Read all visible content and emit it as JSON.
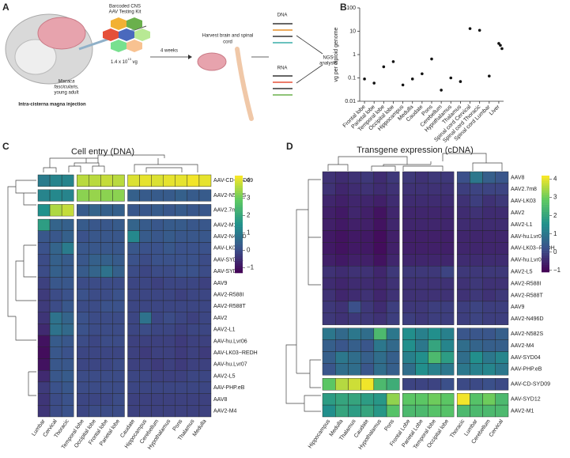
{
  "panel_labels": [
    "A",
    "B",
    "C",
    "D"
  ],
  "diagram": {
    "kit_line1": "Barcoded CNS",
    "kit_line2": "AAV Testing Kit",
    "dose": "1.4 x 10",
    "dose_exp": "13",
    "dose_unit": " vg",
    "species_line1": "Macaca",
    "species_line2": "fascicularis,",
    "species_line3": "young adult",
    "injection": "Intra-cisterna magna injection",
    "wait": "4 weeks",
    "harvest_line1": "Harvest brain and spinal",
    "harvest_line2": "cord",
    "dna": "DNA",
    "rna": "RNA",
    "ngs_line1": "NGS",
    "ngs_line2": "analysis"
  },
  "chart_data": [
    {
      "type": "scatter",
      "ylabel": "vg per diploid genome",
      "log": true,
      "color": "#111111",
      "categories": [
        "Frontal lobe",
        "Parietal lobe",
        "Temporal lobe",
        "Occipital lobe",
        "Hippocampus",
        "Medulla",
        "Caudate",
        "Pons",
        "Cerebellum",
        "Hypothalamus",
        "Thalamus",
        "Spinal cord Cervical",
        "Spinal cord Thoracic",
        "Spinal cord Lumbar",
        "Liver"
      ],
      "x": [
        "Frontal lobe",
        "Parietal lobe",
        "Temporal lobe",
        "Occipital lobe",
        "Hippocampus",
        "Medulla",
        "Caudate",
        "Pons",
        "Cerebellum",
        "Hypothalamus",
        "Thalamus",
        "Spinal cord Cervical",
        "Spinal cord Thoracic",
        "Spinal cord Lumbar",
        "Liver",
        "Liver",
        "Liver"
      ],
      "values": [
        0.09,
        0.06,
        0.3,
        0.5,
        0.05,
        0.09,
        0.15,
        0.65,
        0.03,
        0.1,
        0.07,
        13,
        11,
        0.12,
        3,
        2.5,
        1.8
      ],
      "ylim": [
        0.01,
        100
      ],
      "yticks": [
        0.01,
        0.1,
        1,
        10,
        100
      ]
    },
    {
      "type": "heatmap",
      "title": "Cell entry (DNA)",
      "columns": [
        "Lumbar",
        "Cervical",
        "Thoracic",
        "Temporal lobe",
        "Occipital lobe",
        "Frontal lobe",
        "Parietal lobe",
        "Caudate",
        "Hippocampus",
        "Cerebellum",
        "Hypothalamus",
        "Pons",
        "Thalamus",
        "Medulla"
      ],
      "rows": [
        "AAV-CD-SYD09",
        "AAV2-N582S",
        "AAV2.7m8",
        "AAV2-M1",
        "AAV2-N496D",
        "AAV-LK03",
        "AAV-SYD04",
        "AAV-SYD12",
        "AAV9",
        "AAV2-R588I",
        "AAV2-R588T",
        "AAV2",
        "AAV2-L1",
        "AAV-hu.Lvr06",
        "AAV-LK03−REDH",
        "AAV-hu.Lvr07",
        "AAV2-L5",
        "AAV-PHP.eB",
        "AAV8",
        "AAV2-M4"
      ],
      "column_splits": [
        3,
        7
      ],
      "row_splits": [
        1,
        2,
        3
      ],
      "values": [
        [
          1.0,
          1.2,
          1.2,
          3.7,
          3.7,
          3.8,
          3.7,
          4.0,
          4.1,
          4.0,
          4.1,
          4.1,
          4.2,
          4.1
        ],
        [
          1.2,
          1.3,
          1.2,
          3.3,
          3.4,
          3.3,
          3.3,
          0.4,
          0.3,
          0.3,
          0.3,
          0.4,
          0.3,
          0.3
        ],
        [
          1.5,
          3.6,
          3.8,
          0.3,
          0.5,
          0.4,
          0.4,
          0.2,
          0.2,
          0.3,
          0.2,
          0.3,
          0.2,
          0.2
        ],
        [
          1.8,
          0.5,
          0.4,
          0.3,
          0.2,
          0.2,
          0.3,
          0.5,
          0.3,
          0.2,
          0.3,
          0.3,
          0.2,
          0.2
        ],
        [
          0.2,
          0.2,
          0.4,
          0.1,
          0.2,
          0.2,
          0.2,
          1.3,
          0.3,
          0.2,
          0.3,
          0.2,
          0.2,
          0.2
        ],
        [
          0.1,
          0.5,
          1.0,
          0.2,
          0.2,
          0.2,
          0.2,
          0.2,
          0.1,
          0.1,
          0.2,
          0.1,
          0.1,
          0.1
        ],
        [
          0.0,
          0.4,
          0.3,
          0.2,
          0.4,
          0.4,
          0.3,
          0.1,
          0.0,
          0.1,
          0.1,
          0.1,
          0.1,
          0.0
        ],
        [
          0.0,
          0.4,
          0.3,
          0.3,
          0.5,
          0.8,
          0.4,
          0.0,
          -0.1,
          0.0,
          0.0,
          0.1,
          0.1,
          0.0
        ],
        [
          -0.2,
          0.2,
          0.2,
          0.0,
          0.0,
          0.0,
          0.0,
          -0.1,
          -0.1,
          -0.2,
          -0.1,
          -0.1,
          -0.1,
          -0.2
        ],
        [
          -0.3,
          0.0,
          0.1,
          0.1,
          0.0,
          0.0,
          0.1,
          -0.1,
          -0.1,
          -0.1,
          -0.1,
          -0.2,
          -0.1,
          -0.1
        ],
        [
          -0.3,
          0.0,
          0.2,
          0.0,
          0.0,
          0.1,
          0.1,
          -0.1,
          -0.1,
          -0.1,
          -0.1,
          -0.1,
          -0.1,
          -0.1
        ],
        [
          -0.4,
          0.8,
          0.5,
          0.1,
          0.0,
          0.0,
          0.0,
          -0.1,
          0.8,
          -0.1,
          0.0,
          -0.1,
          -0.2,
          -0.1
        ],
        [
          -0.6,
          0.8,
          0.6,
          0.1,
          0.0,
          0.0,
          0.0,
          -0.1,
          0.0,
          -0.1,
          -0.1,
          -0.2,
          -0.1,
          -0.1
        ],
        [
          -1.0,
          0.3,
          0.2,
          0.0,
          -0.1,
          0.0,
          0.0,
          -0.2,
          -0.2,
          -0.2,
          -0.2,
          -0.3,
          -0.2,
          -0.2
        ],
        [
          -1.1,
          0.2,
          0.1,
          -0.1,
          -0.1,
          -0.1,
          -0.1,
          -0.2,
          -0.3,
          -0.2,
          -0.2,
          -0.3,
          -0.2,
          -0.3
        ],
        [
          -1.0,
          0.2,
          0.2,
          -0.1,
          -0.1,
          -0.1,
          0.0,
          -0.2,
          -0.2,
          -0.3,
          -0.2,
          -0.3,
          -0.2,
          -0.2
        ],
        [
          -0.6,
          0.2,
          0.3,
          0.0,
          0.0,
          0.0,
          0.0,
          -0.1,
          -0.1,
          -0.2,
          -0.2,
          -0.2,
          -0.1,
          -0.1
        ],
        [
          -0.3,
          0.1,
          0.2,
          0.0,
          0.0,
          0.0,
          0.0,
          -0.1,
          -0.1,
          -0.1,
          -0.1,
          -0.1,
          -0.1,
          -0.1
        ],
        [
          -0.4,
          0.0,
          0.1,
          -0.1,
          -0.1,
          -0.1,
          0.0,
          -0.2,
          -0.2,
          -0.2,
          -0.2,
          -0.2,
          -0.2,
          -0.2
        ],
        [
          -0.4,
          0.0,
          0.1,
          -0.1,
          0.0,
          0.0,
          0.0,
          -0.2,
          -0.2,
          -0.2,
          -0.2,
          -0.2,
          -0.2,
          -0.2
        ]
      ],
      "colorbar_lim": [
        -1.3,
        4.3
      ],
      "colorbar_ticks": [
        {
          "value": -1,
          "label": "−1"
        },
        0,
        1,
        2,
        3,
        4
      ]
    },
    {
      "type": "heatmap",
      "title": "Transgene expression (cDNA)",
      "columns": [
        "Hippocampus",
        "Medulla",
        "Thalamus",
        "Caudate",
        "Hypothalamus",
        "Pons",
        "Frontal Lobe",
        "Parietal Lobe",
        "Temporal lobe",
        "Occipital lobe",
        "Thoracic",
        "Lumbar",
        "Cerebellum",
        "Cervical"
      ],
      "rows": [
        "AAV8",
        "AAV2.7m8",
        "AAV-LK03",
        "AAV2",
        "AAV2-L1",
        "AAV-hu.Lvr07",
        "AAV-LK03−REDH",
        "AAV-hu.Lvr06",
        "AAV2-L5",
        "AAV2-R588I",
        "AAV2-R588T",
        "AAV9",
        "AAV2-N496D",
        "AAV2-N582S",
        "AAV2-M4",
        "AAV-SYD04",
        "AAV-PHP.eB",
        "AAV-CD-SYD09",
        "AAV-SYD12",
        "AAV2-M1"
      ],
      "column_splits": [
        6,
        10
      ],
      "row_splits": [
        13,
        17,
        18
      ],
      "values": [
        [
          -0.3,
          -0.4,
          -0.3,
          -0.2,
          -0.4,
          -0.2,
          -0.2,
          -0.3,
          -0.2,
          -0.2,
          0.2,
          1.0,
          0.5,
          0.3
        ],
        [
          -0.3,
          -0.5,
          -0.4,
          -0.3,
          -0.4,
          -0.3,
          -0.3,
          -0.3,
          -0.3,
          -0.3,
          -0.1,
          0.0,
          0.0,
          0.0
        ],
        [
          -0.5,
          -0.6,
          -0.5,
          -0.5,
          -0.6,
          -0.4,
          -0.4,
          -0.4,
          -0.4,
          -0.4,
          -0.3,
          -0.1,
          -0.3,
          -0.2
        ],
        [
          -0.6,
          -0.7,
          -0.5,
          -0.6,
          -0.8,
          -0.5,
          -0.5,
          -0.5,
          -0.5,
          -0.5,
          -0.4,
          -0.3,
          -0.4,
          -0.4
        ],
        [
          -0.6,
          -0.7,
          -0.6,
          -0.6,
          -0.8,
          -0.5,
          -0.5,
          -0.5,
          -0.5,
          -0.5,
          -0.4,
          -0.4,
          -0.4,
          -0.4
        ],
        [
          -0.7,
          -0.8,
          -0.7,
          -0.7,
          -0.9,
          -0.6,
          -0.6,
          -0.6,
          -0.6,
          -0.6,
          -0.5,
          -0.5,
          -0.5,
          -0.5
        ],
        [
          -0.7,
          -0.8,
          -0.7,
          -0.7,
          -0.9,
          -0.6,
          -0.6,
          -0.6,
          -0.6,
          -0.6,
          -0.5,
          -0.5,
          -0.5,
          -0.5
        ],
        [
          -0.6,
          -0.7,
          -0.6,
          -0.6,
          -0.8,
          -0.5,
          -0.5,
          -0.5,
          -0.5,
          -0.5,
          -0.4,
          -0.4,
          -0.4,
          -0.4
        ],
        [
          -0.3,
          -0.4,
          -0.3,
          -0.3,
          -0.5,
          -0.2,
          -0.2,
          -0.2,
          -0.2,
          0.0,
          -0.2,
          -0.2,
          -0.2,
          -0.2
        ],
        [
          -0.4,
          -0.5,
          -0.4,
          -0.4,
          -0.5,
          -0.3,
          -0.3,
          -0.3,
          -0.3,
          -0.3,
          -0.3,
          -0.2,
          -0.3,
          -0.3
        ],
        [
          -0.3,
          -0.5,
          -0.4,
          -0.3,
          -0.5,
          -0.3,
          -0.3,
          -0.3,
          -0.3,
          -0.3,
          -0.3,
          -0.2,
          -0.3,
          -0.2
        ],
        [
          -0.2,
          -0.3,
          0.2,
          -0.2,
          -0.4,
          -0.1,
          -0.2,
          -0.2,
          -0.1,
          -0.1,
          -0.1,
          0.0,
          -0.1,
          -0.1
        ],
        [
          -0.2,
          -0.3,
          -0.2,
          -0.2,
          -0.3,
          -0.1,
          -0.1,
          -0.2,
          -0.1,
          -0.1,
          -0.1,
          0.0,
          -0.1,
          -0.1
        ],
        [
          1.0,
          0.7,
          1.0,
          0.8,
          2.5,
          1.0,
          1.5,
          1.2,
          1.5,
          1.2,
          0.3,
          0.3,
          0.3,
          0.5
        ],
        [
          0.5,
          0.3,
          0.5,
          0.3,
          1.0,
          0.7,
          1.5,
          1.0,
          2.0,
          1.3,
          0.8,
          0.6,
          0.5,
          0.5
        ],
        [
          0.5,
          1.0,
          0.8,
          0.5,
          0.8,
          0.5,
          1.2,
          1.5,
          2.5,
          1.8,
          0.8,
          1.5,
          1.0,
          1.3
        ],
        [
          0.3,
          0.8,
          0.8,
          0.3,
          0.8,
          0.5,
          0.8,
          1.5,
          1.2,
          1.0,
          1.0,
          1.2,
          1.3,
          1.0
        ],
        [
          2.8,
          3.6,
          3.8,
          4.1,
          2.5,
          2.2,
          0.0,
          0.0,
          0.0,
          0.2,
          0.1,
          0.1,
          0.2,
          0.1
        ],
        [
          1.8,
          2.0,
          2.0,
          1.8,
          1.7,
          3.3,
          2.8,
          2.8,
          3.0,
          2.8,
          4.1,
          2.7,
          3.0,
          2.5
        ],
        [
          1.5,
          2.0,
          1.8,
          2.0,
          1.7,
          2.7,
          2.5,
          2.5,
          2.7,
          2.7,
          2.5,
          2.5,
          2.5,
          2.5
        ]
      ],
      "colorbar_lim": [
        -1.1,
        4.2
      ],
      "colorbar_ticks": [
        {
          "value": -1,
          "label": "−1"
        },
        0,
        1,
        2,
        3,
        4
      ]
    }
  ]
}
